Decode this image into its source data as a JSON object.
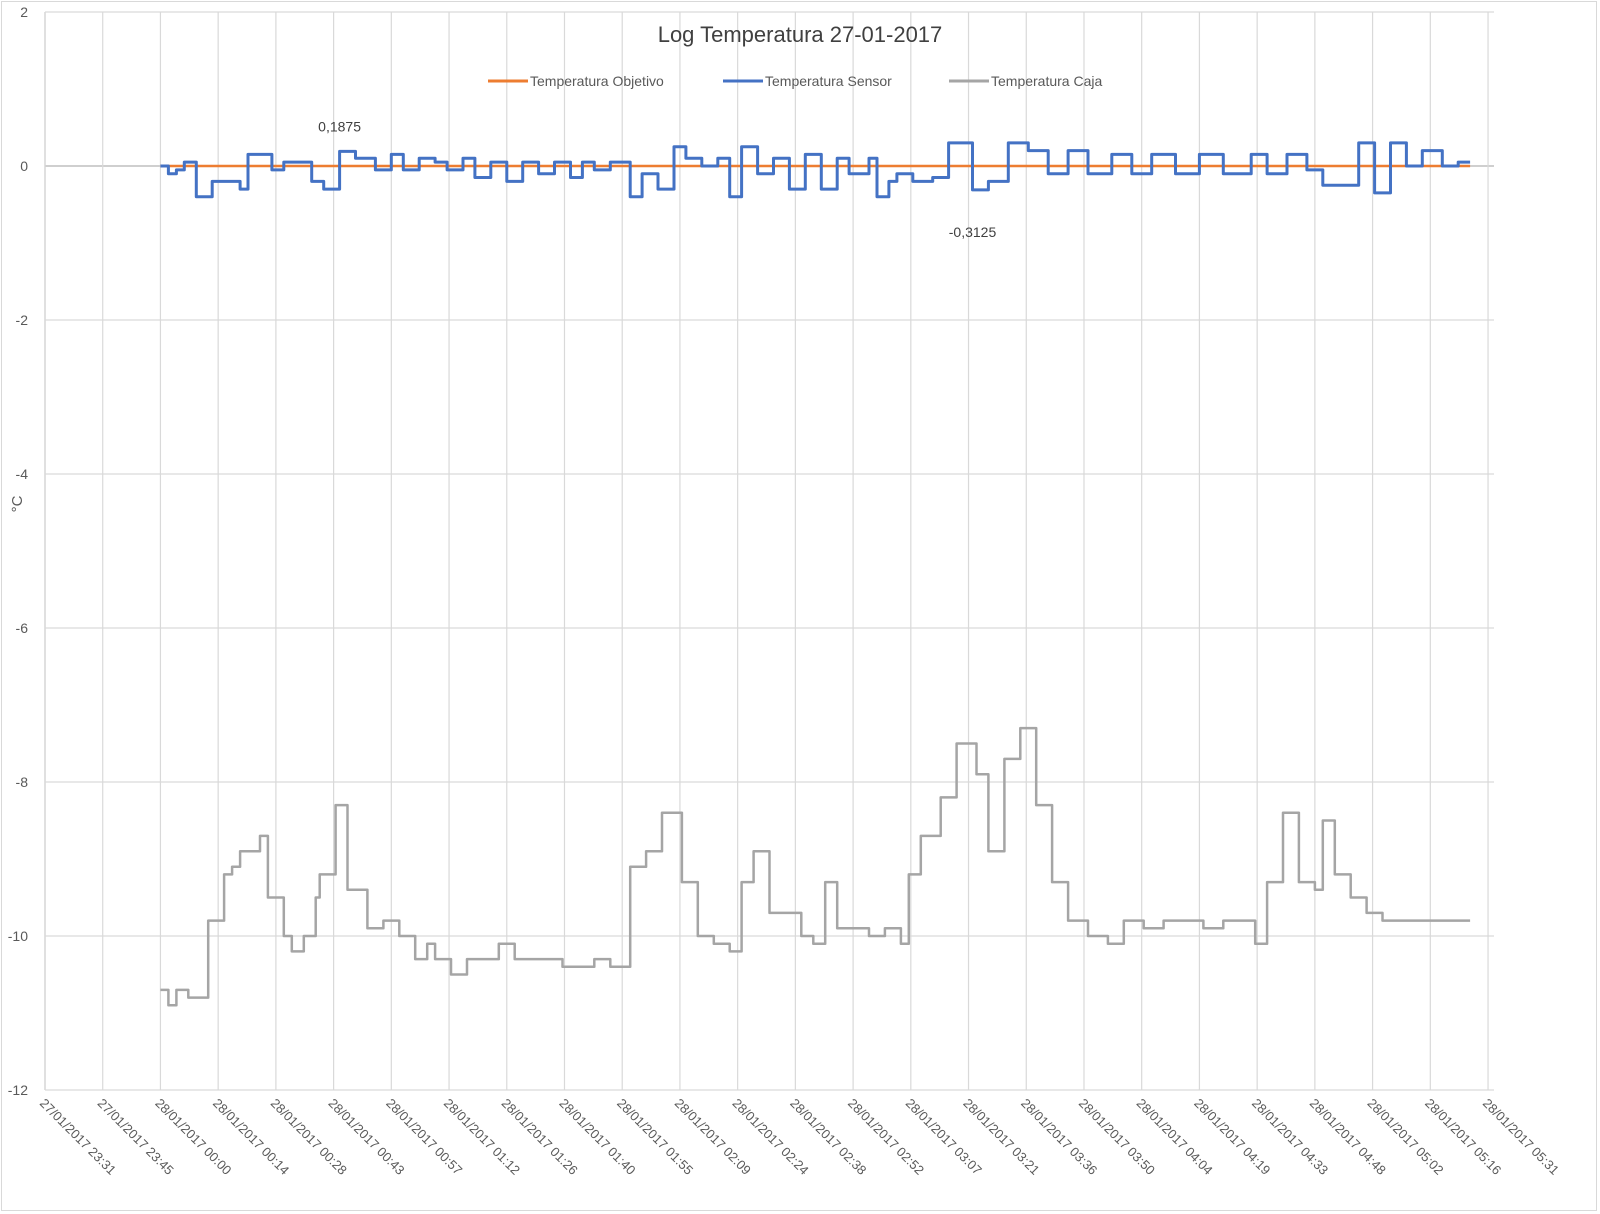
{
  "chart_data": {
    "type": "line",
    "title": "Log Temperatura  27-01-2017",
    "ylabel": "°C",
    "xlabel": "",
    "ylim": [
      -12,
      2
    ],
    "yticks": [
      2,
      0,
      -2,
      -4,
      -6,
      -8,
      -10,
      -12
    ],
    "ytick_labels": [
      "2",
      "0",
      "-2",
      "-4",
      "-6",
      "-8",
      "-10",
      "-12"
    ],
    "x_range_minutes": [
      0,
      364
    ],
    "x_tick_step_minutes": 14.5,
    "x_tick_labels": [
      "27/01/2017 23:31",
      "27/01/2017 23:45",
      "28/01/2017 00:00",
      "28/01/2017 00:14",
      "28/01/2017 00:28",
      "28/01/2017 00:43",
      "28/01/2017 00:57",
      "28/01/2017 01:12",
      "28/01/2017 01:26",
      "28/01/2017 01:40",
      "28/01/2017 01:55",
      "28/01/2017 02:09",
      "28/01/2017 02:24",
      "28/01/2017 02:38",
      "28/01/2017 02:52",
      "28/01/2017 03:07",
      "28/01/2017 03:21",
      "28/01/2017 03:36",
      "28/01/2017 03:50",
      "28/01/2017 04:04",
      "28/01/2017 04:19",
      "28/01/2017 04:33",
      "28/01/2017 04:48",
      "28/01/2017 05:02",
      "28/01/2017 05:16",
      "28/01/2017 05:31"
    ],
    "grid": true,
    "legend_position": "top",
    "series": [
      {
        "name": "Temperatura Objetivo",
        "color": "#ed7d31",
        "x": [
          "28/01/2017 00:00",
          "28/01/2017 05:29"
        ],
        "values": [
          0,
          0
        ]
      },
      {
        "name": "Temperatura Sensor",
        "color": "#4472c4",
        "x": [
          "28/01/2017 00:00",
          "28/01/2017 00:02",
          "28/01/2017 00:04",
          "28/01/2017 00:06",
          "28/01/2017 00:09",
          "28/01/2017 00:11",
          "28/01/2017 00:13",
          "28/01/2017 00:17",
          "28/01/2017 00:20",
          "28/01/2017 00:22",
          "28/01/2017 00:24",
          "28/01/2017 00:28",
          "28/01/2017 00:31",
          "28/01/2017 00:33",
          "28/01/2017 00:38",
          "28/01/2017 00:41",
          "28/01/2017 00:45",
          "28/01/2017 00:49",
          "28/01/2017 00:54",
          "28/01/2017 00:58",
          "28/01/2017 01:01",
          "28/01/2017 01:05",
          "28/01/2017 01:09",
          "28/01/2017 01:12",
          "28/01/2017 01:16",
          "28/01/2017 01:19",
          "28/01/2017 01:23",
          "28/01/2017 01:27",
          "28/01/2017 01:31",
          "28/01/2017 01:35",
          "28/01/2017 01:39",
          "28/01/2017 01:43",
          "28/01/2017 01:46",
          "28/01/2017 01:49",
          "28/01/2017 01:53",
          "28/01/2017 01:58",
          "28/01/2017 02:01",
          "28/01/2017 02:05",
          "28/01/2017 02:09",
          "28/01/2017 02:12",
          "28/01/2017 02:16",
          "28/01/2017 02:20",
          "28/01/2017 02:23",
          "28/01/2017 02:26",
          "28/01/2017 02:30",
          "28/01/2017 02:34",
          "28/01/2017 02:38",
          "28/01/2017 02:42",
          "28/01/2017 02:46",
          "28/01/2017 02:50",
          "28/01/2017 02:53",
          "28/01/2017 02:58",
          "28/01/2017 03:00",
          "28/01/2017 03:03",
          "28/01/2017 03:05",
          "28/01/2017 03:09",
          "28/01/2017 03:14",
          "28/01/2017 03:18",
          "28/01/2017 03:24",
          "28/01/2017 03:28",
          "28/01/2017 03:33",
          "28/01/2017 03:38",
          "28/01/2017 03:43",
          "28/01/2017 03:48",
          "28/01/2017 03:53",
          "28/01/2017 03:59",
          "28/01/2017 04:04",
          "28/01/2017 04:09",
          "28/01/2017 04:15",
          "28/01/2017 04:21",
          "28/01/2017 04:27",
          "28/01/2017 04:34",
          "28/01/2017 04:38",
          "28/01/2017 04:43",
          "28/01/2017 04:48",
          "28/01/2017 04:52",
          "28/01/2017 04:56",
          "28/01/2017 05:01",
          "28/01/2017 05:05",
          "28/01/2017 05:09",
          "28/01/2017 05:13",
          "28/01/2017 05:17",
          "28/01/2017 05:22",
          "28/01/2017 05:26",
          "28/01/2017 05:29"
        ],
        "values": [
          0.0,
          -0.1,
          -0.05,
          0.05,
          -0.4,
          -0.4,
          -0.2,
          -0.2,
          -0.3,
          0.15,
          0.15,
          -0.05,
          0.05,
          0.05,
          -0.2,
          -0.3,
          0.19,
          0.1,
          -0.05,
          0.15,
          -0.05,
          0.1,
          0.05,
          -0.05,
          0.1,
          -0.15,
          0.05,
          -0.2,
          0.05,
          -0.1,
          0.05,
          -0.15,
          0.05,
          -0.05,
          0.05,
          -0.4,
          -0.1,
          -0.3,
          0.25,
          0.1,
          0.0,
          0.1,
          -0.4,
          0.25,
          -0.1,
          0.1,
          -0.3,
          0.15,
          -0.3,
          0.1,
          -0.1,
          0.1,
          -0.4,
          -0.2,
          -0.1,
          -0.2,
          -0.15,
          0.3,
          -0.31,
          -0.2,
          0.3,
          0.2,
          -0.1,
          0.2,
          -0.1,
          0.15,
          -0.1,
          0.15,
          -0.1,
          0.15,
          -0.1,
          0.15,
          -0.1,
          0.15,
          -0.05,
          -0.25,
          -0.25,
          0.3,
          -0.35,
          0.3,
          0.0,
          0.2,
          0.0,
          0.05,
          0.05
        ]
      },
      {
        "name": "Temperatura Caja",
        "color": "#a5a5a5",
        "x": [
          "28/01/2017 00:00",
          "28/01/2017 00:02",
          "28/01/2017 00:04",
          "28/01/2017 00:07",
          "28/01/2017 00:09",
          "28/01/2017 00:12",
          "28/01/2017 00:16",
          "28/01/2017 00:18",
          "28/01/2017 00:20",
          "28/01/2017 00:25",
          "28/01/2017 00:27",
          "28/01/2017 00:31",
          "28/01/2017 00:33",
          "28/01/2017 00:36",
          "28/01/2017 00:39",
          "28/01/2017 00:40",
          "28/01/2017 00:44",
          "28/01/2017 00:47",
          "28/01/2017 00:52",
          "28/01/2017 00:56",
          "28/01/2017 01:00",
          "28/01/2017 01:02",
          "28/01/2017 01:04",
          "28/01/2017 01:07",
          "28/01/2017 01:09",
          "28/01/2017 01:13",
          "28/01/2017 01:17",
          "28/01/2017 01:21",
          "28/01/2017 01:25",
          "28/01/2017 01:29",
          "28/01/2017 01:33",
          "28/01/2017 01:37",
          "28/01/2017 01:41",
          "28/01/2017 01:45",
          "28/01/2017 01:49",
          "28/01/2017 01:53",
          "28/01/2017 01:58",
          "28/01/2017 02:02",
          "28/01/2017 02:06",
          "28/01/2017 02:11",
          "28/01/2017 02:15",
          "28/01/2017 02:19",
          "28/01/2017 02:23",
          "28/01/2017 02:26",
          "28/01/2017 02:29",
          "28/01/2017 02:33",
          "28/01/2017 02:37",
          "28/01/2017 02:41",
          "28/01/2017 02:44",
          "28/01/2017 02:47",
          "28/01/2017 02:50",
          "28/01/2017 02:54",
          "28/01/2017 02:58",
          "28/01/2017 03:02",
          "28/01/2017 03:06",
          "28/01/2017 03:08",
          "28/01/2017 03:11",
          "28/01/2017 03:16",
          "28/01/2017 03:20",
          "28/01/2017 03:25",
          "28/01/2017 03:28",
          "28/01/2017 03:32",
          "28/01/2017 03:36",
          "28/01/2017 03:40",
          "28/01/2017 03:44",
          "28/01/2017 03:48",
          "28/01/2017 03:53",
          "28/01/2017 03:58",
          "28/01/2017 04:02",
          "28/01/2017 04:07",
          "28/01/2017 04:12",
          "28/01/2017 04:17",
          "28/01/2017 04:22",
          "28/01/2017 04:27",
          "28/01/2017 04:32",
          "28/01/2017 04:35",
          "28/01/2017 04:38",
          "28/01/2017 04:42",
          "28/01/2017 04:46",
          "28/01/2017 04:50",
          "28/01/2017 04:52",
          "28/01/2017 04:55",
          "28/01/2017 04:59",
          "28/01/2017 05:03",
          "28/01/2017 05:07",
          "28/01/2017 05:12",
          "28/01/2017 05:16",
          "28/01/2017 05:19",
          "28/01/2017 05:22",
          "28/01/2017 05:26",
          "28/01/2017 05:29"
        ],
        "values": [
          -10.7,
          -10.9,
          -10.7,
          -10.8,
          -10.8,
          -9.8,
          -9.2,
          -9.1,
          -8.9,
          -8.7,
          -9.5,
          -10.0,
          -10.2,
          -10.0,
          -9.5,
          -9.2,
          -8.3,
          -9.4,
          -9.9,
          -9.8,
          -10.0,
          -10.0,
          -10.3,
          -10.1,
          -10.3,
          -10.5,
          -10.3,
          -10.3,
          -10.1,
          -10.3,
          -10.3,
          -10.3,
          -10.4,
          -10.4,
          -10.3,
          -10.4,
          -9.1,
          -8.9,
          -8.4,
          -9.3,
          -10.0,
          -10.1,
          -10.2,
          -9.3,
          -8.9,
          -9.7,
          -9.7,
          -10.0,
          -10.1,
          -9.3,
          -9.9,
          -9.9,
          -10.0,
          -9.9,
          -10.1,
          -9.2,
          -8.7,
          -8.2,
          -7.5,
          -7.9,
          -8.9,
          -7.7,
          -7.3,
          -8.3,
          -9.3,
          -9.8,
          -10.0,
          -10.1,
          -9.8,
          -9.9,
          -9.8,
          -9.8,
          -9.9,
          -9.8,
          -9.8,
          -10.1,
          -9.3,
          -8.4,
          -9.3,
          -9.4,
          -8.5,
          -9.2,
          -9.5,
          -9.7,
          -9.8,
          -9.8,
          -9.8,
          -9.8,
          -9.8,
          -9.8,
          -9.8
        ]
      }
    ],
    "annotations": [
      {
        "text": "0,1875",
        "x": "28/01/2017 00:45",
        "y": 0.1875
      },
      {
        "text": "-0,3125",
        "x": "28/01/2017 03:24",
        "y": -0.3125
      }
    ]
  }
}
